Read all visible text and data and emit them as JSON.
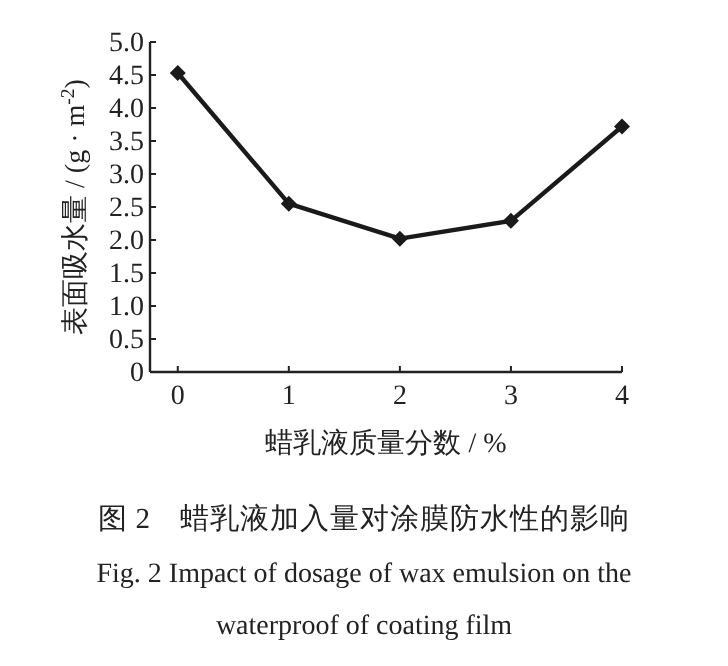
{
  "chart_data": {
    "type": "line",
    "title": "图 2　蜡乳液加入量对涂膜防水性的影响",
    "subtitle": "Fig. 2 Impact of dosage of wax emulsion on the waterproof of coating film",
    "xlabel": "蜡乳液质量分数 / %",
    "ylabel": "表面吸水量 / (g · m$^{-2}$)",
    "x": [
      0,
      1,
      2,
      3,
      4
    ],
    "values": [
      4.53,
      2.55,
      2.02,
      2.29,
      3.72
    ],
    "color": "#1a1a1a",
    "marker": "diamond",
    "line_style": "solid",
    "xlim": [
      -0.25,
      4
    ],
    "xticks": [
      0,
      1,
      2,
      3,
      4
    ],
    "ylim": [
      0,
      5
    ],
    "yticks": [
      0,
      {
        "value": 0.5,
        "label": "0.5"
      },
      {
        "value": 1,
        "label": "1.0"
      },
      {
        "value": 1.5,
        "label": "1.5"
      },
      {
        "value": 2,
        "label": "2.0"
      },
      {
        "value": 2.5,
        "label": "2.5"
      },
      {
        "value": 3,
        "label": "3.0"
      },
      {
        "value": 3.5,
        "label": "3.5"
      },
      {
        "value": 4,
        "label": "4.0"
      },
      {
        "value": 4.5,
        "label": "4.5"
      },
      {
        "value": 5,
        "label": "5.0"
      }
    ]
  }
}
